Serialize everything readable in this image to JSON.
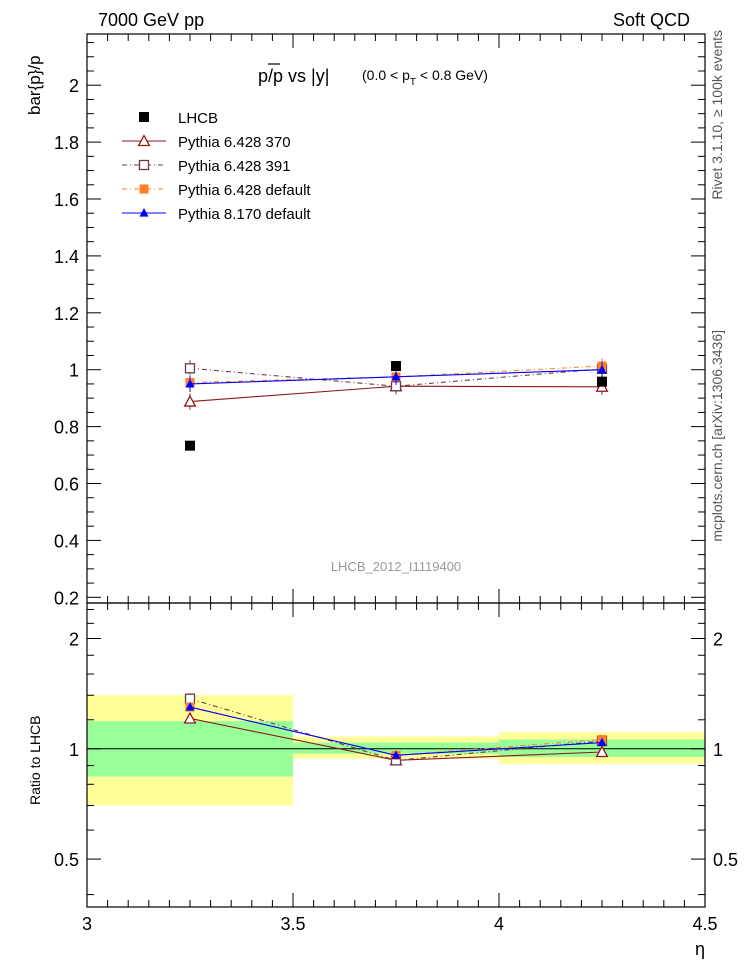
{
  "header": {
    "left": "7000 GeV pp",
    "right": "Soft QCD",
    "side_top": "Rivet 3.1.10, ≥ 100k events",
    "side_bottom": "mcplots.cern.ch [arXiv:1306.3436]"
  },
  "chart_data": {
    "type": "line",
    "title": "p̅/p vs |y|",
    "title_main": "p/p vs |y|",
    "title_range_pre": "(0.0 < p",
    "title_range_sub": "T",
    "title_range_post": " < 0.8 GeV)",
    "watermark": "LHCB_2012_I1119400",
    "xlabel": "η",
    "ylabel": "bar{p}/p",
    "ratio_ylabel": "Ratio to LHCB",
    "xlim": [
      3.0,
      4.5
    ],
    "ylim": [
      0.18,
      2.18
    ],
    "ratio_ylim": [
      0.37,
      2.5
    ],
    "ratio_scale": "log",
    "x_ticks": [
      "3",
      "3.5",
      "4",
      "4.5"
    ],
    "x_tick_values": [
      3.0,
      3.5,
      4.0,
      4.5
    ],
    "y_ticks": [
      "0.2",
      "0.4",
      "0.6",
      "0.8",
      "1",
      "1.2",
      "1.4",
      "1.6",
      "1.8",
      "2"
    ],
    "y_tick_values": [
      0.2,
      0.4,
      0.6,
      0.8,
      1.0,
      1.2,
      1.4,
      1.6,
      1.8,
      2.0
    ],
    "ratio_ticks": [
      "0.5",
      "1",
      "2"
    ],
    "ratio_tick_values": [
      0.5,
      1.0,
      2.0
    ],
    "x": [
      3.25,
      3.75,
      4.25
    ],
    "bins": [
      [
        3.0,
        3.5
      ],
      [
        3.5,
        4.0
      ],
      [
        4.0,
        4.5
      ]
    ],
    "data": {
      "name": "LHCB",
      "values": [
        0.733,
        1.013,
        0.958
      ],
      "ratio_band_stat": [
        [
          0.84,
          1.19
        ],
        [
          0.97,
          1.04
        ],
        [
          0.95,
          1.06
        ]
      ],
      "ratio_band_total": [
        [
          0.7,
          1.4
        ],
        [
          0.94,
          1.08
        ],
        [
          0.91,
          1.11
        ]
      ]
    },
    "series": [
      {
        "name": "Pythia 6.428 370",
        "color": "#8b1a1a",
        "marker": "triangle-open",
        "dash": "",
        "values": [
          0.888,
          0.942,
          0.94
        ],
        "ratio": [
          1.21,
          0.93,
          0.98
        ]
      },
      {
        "name": "Pythia 6.428 391",
        "color": "#6b3a4a",
        "marker": "square-open",
        "dash": "5,3,1,3",
        "values": [
          1.005,
          0.942,
          1.003
        ],
        "ratio": [
          1.37,
          0.93,
          1.05
        ]
      },
      {
        "name": "Pythia 6.428 default",
        "color": "#ff7f27",
        "marker": "square-filled",
        "dash": "5,3,1,3",
        "values": [
          0.955,
          0.975,
          1.013
        ],
        "ratio": [
          1.3,
          0.96,
          1.06
        ]
      },
      {
        "name": "Pythia 8.170 default",
        "color": "#0000ff",
        "marker": "triangle-filled",
        "dash": "",
        "values": [
          0.95,
          0.975,
          1.0
        ],
        "ratio": [
          1.3,
          0.96,
          1.04
        ]
      }
    ],
    "colors": {
      "band_stat": "#99ff99",
      "band_total": "#ffff99",
      "data": "#000000"
    },
    "legend_position": "top-left",
    "grid": false
  }
}
